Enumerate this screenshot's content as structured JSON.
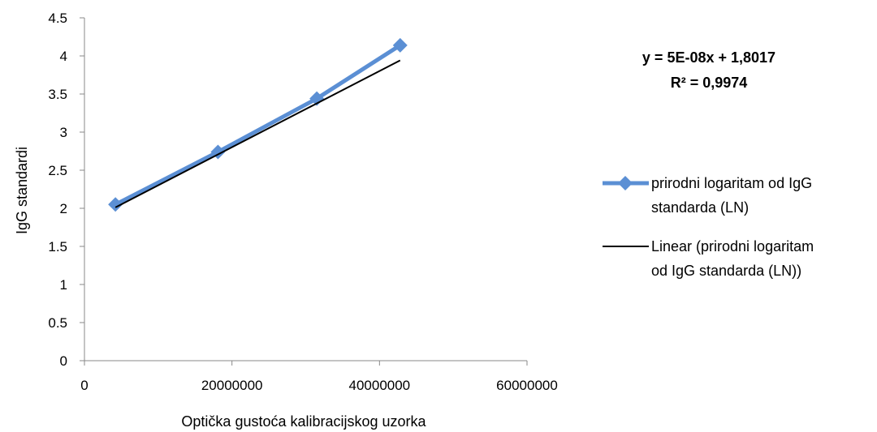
{
  "chart_data": {
    "type": "scatter",
    "xlabel": "Optička gustoća kalibracijskog uzorka",
    "ylabel": "IgG standardi",
    "xlim": [
      0,
      60000000
    ],
    "ylim": [
      0,
      4.5
    ],
    "x_ticks": [
      "0",
      "20000000",
      "40000000",
      "60000000"
    ],
    "y_ticks": [
      "0",
      "0.5",
      "1",
      "1.5",
      "2",
      "2.5",
      "3",
      "3.5",
      "4",
      "4.5"
    ],
    "grid": false,
    "legend_position": "right",
    "series": [
      {
        "name": "prirodni logaritam od IgG standarda (LN)",
        "legend_lines": [
          "prirodni logaritam od IgG",
          "standarda (LN)"
        ],
        "color": "#5B8FD4",
        "marker": "diamond",
        "x": [
          4200000,
          18100000,
          31500000,
          42800000
        ],
        "y": [
          2.05,
          2.74,
          3.44,
          4.14
        ]
      }
    ],
    "trendline": {
      "name": "Linear (prirodni logaritam od IgG standarda (LN))",
      "legend_lines": [
        "Linear (prirodni logaritam",
        "od IgG standarda (LN))"
      ],
      "color": "#000000",
      "slope": 5e-08,
      "intercept": 1.8017
    },
    "annotation": {
      "equation": "y = 5E-08x + 1,8017",
      "r_squared": "R² = 0,9974"
    }
  }
}
